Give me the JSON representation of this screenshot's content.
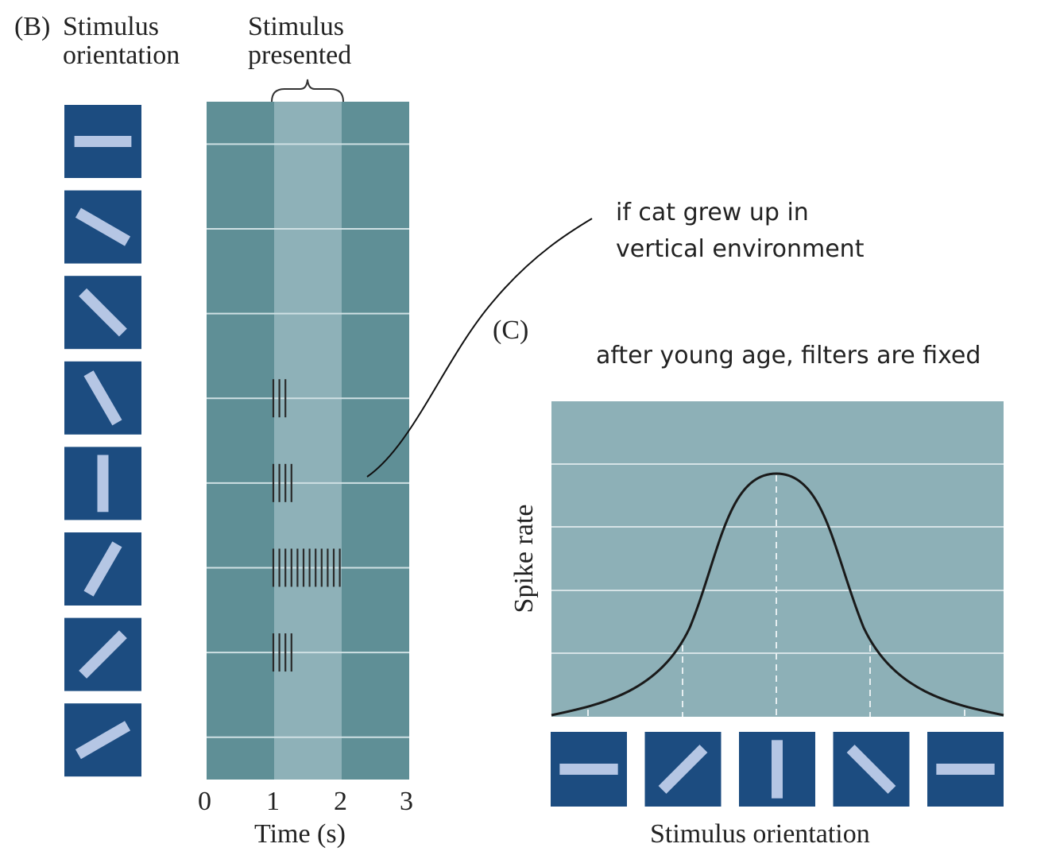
{
  "panel_b": {
    "letter": "(B)",
    "orientation_header": [
      "Stimulus",
      "orientation"
    ],
    "presented_header": [
      "Stimulus",
      "presented"
    ],
    "time_ticks": [
      "0",
      "1",
      "2",
      "3"
    ],
    "time_label": "Time (s)",
    "orientations_deg": [
      0,
      30,
      45,
      60,
      90,
      120,
      135,
      150
    ]
  },
  "panel_c": {
    "letter": "(C)",
    "y_label": "Spike rate",
    "x_label": "Stimulus orientation",
    "orientations_deg": [
      0,
      135,
      90,
      45,
      0
    ]
  },
  "annotations": {
    "note1_line1": "if cat grew up in",
    "note1_line2": "vertical environment",
    "note2": "after young age, filters are fixed"
  },
  "colors": {
    "dark_teal": "#5f8f96",
    "light_teal": "#8eb1b8",
    "panel_c_bg": "#8db0b7",
    "tile_blue": "#1c4c80",
    "bar_light": "#b5c6e4"
  },
  "chart_data": {
    "type": "raster",
    "rows": [
      {
        "orientation": 0,
        "spikes": 0
      },
      {
        "orientation": 30,
        "spikes": 0
      },
      {
        "orientation": 45,
        "spikes": 0
      },
      {
        "orientation": 60,
        "spikes": 3
      },
      {
        "orientation": 90,
        "spikes": 4
      },
      {
        "orientation": 120,
        "spikes": 12
      },
      {
        "orientation": 135,
        "spikes": 4
      },
      {
        "orientation": 150,
        "spikes": 0
      }
    ],
    "xlabel": "Time (s)",
    "xlim": [
      0,
      3
    ],
    "stimulus_window": [
      1,
      2
    ]
  }
}
